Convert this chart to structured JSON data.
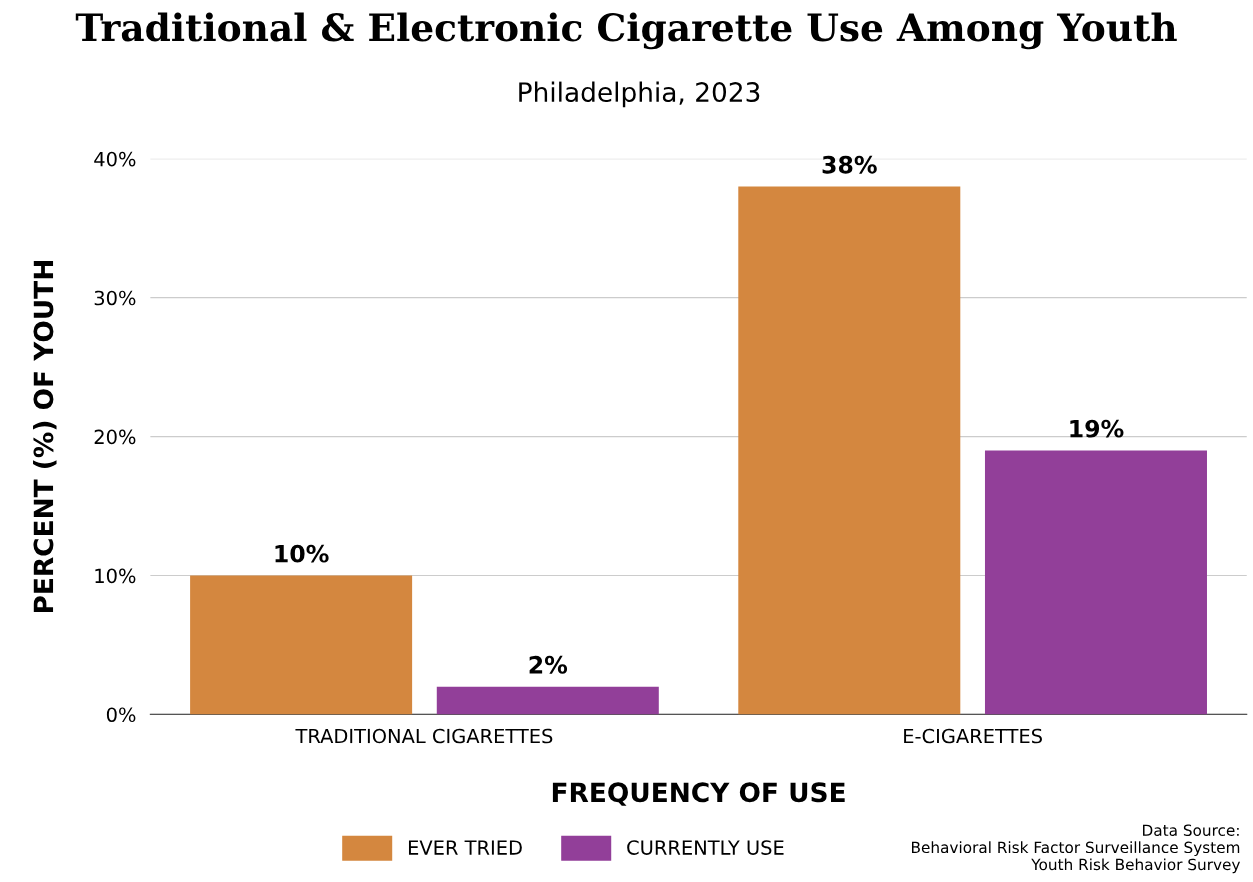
{
  "chart_data": {
    "type": "bar",
    "title": "Traditional & Electronic Cigarette Use Among Youth",
    "subtitle": "Philadelphia, 2023",
    "xlabel": "FREQUENCY OF USE",
    "ylabel": "PERCENT (%) OF YOUTH",
    "categories": [
      "TRADITIONAL CIGARETTES",
      "E-CIGARETTES"
    ],
    "series": [
      {
        "name": "EVER TRIED",
        "color": "#d4873f",
        "values": [
          10,
          38
        ],
        "value_labels": [
          "10%",
          "38%"
        ]
      },
      {
        "name": "CURRENTLY USE",
        "color": "#923f99",
        "values": [
          2,
          19
        ],
        "value_labels": [
          "2%",
          "19%"
        ]
      }
    ],
    "ylim": [
      0,
      40
    ],
    "yticks": [
      {
        "value": 0,
        "label": "0%"
      },
      {
        "value": 10,
        "label": "10%"
      },
      {
        "value": 20,
        "label": "20%"
      },
      {
        "value": 30,
        "label": "30%"
      },
      {
        "value": 40,
        "label": "40%"
      }
    ],
    "grid": "y",
    "legend": "bottom",
    "annotations": [
      "Data Source:\nBehavioral Risk Factor Surveillance System\nYouth Risk Behavior Survey"
    ]
  }
}
